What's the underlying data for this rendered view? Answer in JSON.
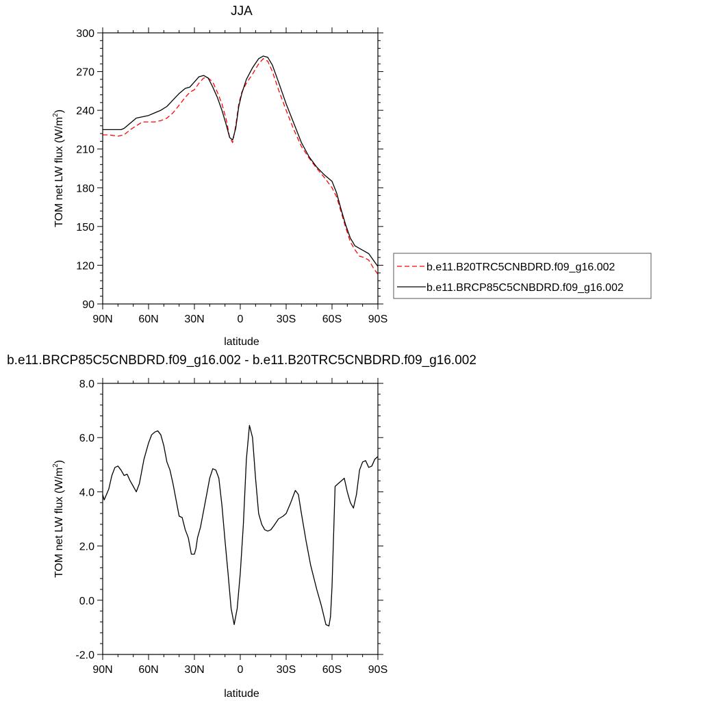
{
  "chart_data": [
    {
      "type": "line",
      "title": "JJA",
      "xlabel": "latitude",
      "ylabel_prefix": "TOM net LW flux (W/m",
      "ylabel_sup": "2",
      "ylabel_suffix": ")",
      "xlim": [
        90,
        -90
      ],
      "ylim": [
        90,
        300
      ],
      "xticks": [
        90,
        60,
        30,
        0,
        -30,
        -60,
        -90
      ],
      "xtick_labels": [
        "90N",
        "60N",
        "30N",
        "0",
        "30S",
        "60S",
        "90S"
      ],
      "yticks": [
        90,
        120,
        150,
        180,
        210,
        240,
        270,
        300
      ],
      "ytick_labels": [
        "90",
        "120",
        "150",
        "180",
        "210",
        "240",
        "270",
        "300"
      ],
      "legend_position": "right-outside",
      "series": [
        {
          "name": "b.e11.B20TRC5CNBDRD.f09_g16.002",
          "color": "#ff0000",
          "dash": "dashed",
          "x": [
            90,
            86,
            80,
            76,
            72,
            68,
            64,
            60,
            56,
            52,
            48,
            44,
            40,
            36,
            33,
            30,
            27,
            24,
            21,
            18,
            15,
            12,
            9,
            7,
            5,
            3,
            1,
            -1,
            -4,
            -8,
            -12,
            -15,
            -18,
            -21,
            -25,
            -30,
            -35,
            -40,
            -45,
            -50,
            -55,
            -60,
            -63,
            -66,
            -69,
            -72,
            -75,
            -78,
            -81,
            -84,
            -87,
            -90
          ],
          "y": [
            221,
            221,
            220,
            221,
            225,
            228,
            231,
            231,
            231,
            232,
            234,
            238,
            244,
            250,
            254,
            256,
            261,
            265,
            265,
            262,
            254,
            245,
            232,
            219,
            215,
            228,
            245,
            254,
            261,
            268,
            276,
            280,
            278,
            270,
            256,
            240,
            225,
            212,
            203,
            195,
            188,
            180,
            173,
            161,
            149,
            138,
            132,
            127,
            126,
            124,
            118,
            113
          ]
        },
        {
          "name": "b.e11.BRCP85C5CNBDRD.f09_g16.002",
          "color": "#000000",
          "dash": "solid",
          "x": [
            90,
            86,
            82,
            80,
            78,
            76,
            72,
            68,
            64,
            60,
            56,
            52,
            48,
            44,
            40,
            36,
            33,
            30,
            27,
            24,
            21,
            18,
            15,
            12,
            9,
            7,
            5,
            3,
            1,
            -1,
            -4,
            -8,
            -12,
            -15,
            -18,
            -21,
            -25,
            -30,
            -35,
            -40,
            -45,
            -50,
            -55,
            -60,
            -63,
            -66,
            -69,
            -72,
            -75,
            -78,
            -81,
            -84,
            -87,
            -90
          ],
          "y": [
            225,
            225,
            225,
            225,
            225,
            226,
            230,
            234,
            235,
            236,
            238,
            240,
            243,
            248,
            253,
            257,
            258,
            262,
            266,
            267,
            265,
            258,
            250,
            240,
            228,
            219,
            217,
            226,
            243,
            253,
            264,
            273,
            280,
            282,
            281,
            275,
            262,
            245,
            230,
            215,
            204,
            196,
            190,
            185,
            176,
            163,
            151,
            141,
            135,
            133,
            131,
            129,
            124,
            119
          ]
        }
      ]
    },
    {
      "type": "line",
      "title": "b.e11.BRCP85C5CNBDRD.f09_g16.002 - b.e11.B20TRC5CNBDRD.f09_g16.002",
      "xlabel": "latitude",
      "ylabel_prefix": "TOM net LW flux (W/m",
      "ylabel_sup": "2",
      "ylabel_suffix": ")",
      "xlim": [
        90,
        -90
      ],
      "ylim": [
        -2,
        8
      ],
      "xticks": [
        90,
        60,
        30,
        0,
        -30,
        -60,
        -90
      ],
      "xtick_labels": [
        "90N",
        "60N",
        "30N",
        "0",
        "30S",
        "60S",
        "90S"
      ],
      "yticks": [
        -2,
        0,
        2,
        4,
        6,
        8
      ],
      "ytick_labels": [
        "-2.0",
        "0.0",
        "2.0",
        "4.0",
        "6.0",
        "8.0"
      ],
      "series": [
        {
          "color": "#000000",
          "dash": "solid",
          "x": [
            90,
            89,
            86,
            84,
            82,
            80,
            78,
            76,
            74,
            72,
            70,
            68,
            66,
            63,
            60,
            58,
            56,
            54,
            52,
            50,
            48,
            46,
            44,
            42,
            40,
            38,
            36,
            34,
            32,
            30,
            29,
            28,
            26,
            24,
            22,
            20,
            18,
            16,
            14,
            12,
            10,
            8,
            6,
            4,
            2,
            0,
            -2,
            -4,
            -6,
            -8,
            -10,
            -12,
            -14,
            -16,
            -18,
            -20,
            -22,
            -25,
            -28,
            -30,
            -33,
            -36,
            -38,
            -40,
            -43,
            -46,
            -50,
            -53,
            -56,
            -58,
            -59,
            -60,
            -62,
            -64,
            -66,
            -68,
            -70,
            -72,
            -74,
            -76,
            -78,
            -80,
            -82,
            -84,
            -86,
            -88,
            -90
          ],
          "y": [
            3.9,
            3.7,
            4.1,
            4.6,
            4.9,
            4.95,
            4.8,
            4.6,
            4.65,
            4.4,
            4.2,
            4.0,
            4.3,
            5.2,
            5.8,
            6.1,
            6.2,
            6.25,
            6.1,
            5.7,
            5.1,
            4.8,
            4.3,
            3.7,
            3.1,
            3.05,
            2.6,
            2.3,
            1.7,
            1.7,
            1.9,
            2.3,
            2.7,
            3.3,
            3.9,
            4.5,
            4.85,
            4.8,
            4.5,
            3.5,
            2.2,
            1.0,
            -0.3,
            -0.9,
            -0.3,
            1.0,
            2.8,
            5.2,
            6.45,
            6.0,
            4.5,
            3.2,
            2.8,
            2.6,
            2.55,
            2.6,
            2.75,
            3.0,
            3.1,
            3.2,
            3.6,
            4.05,
            3.9,
            3.2,
            2.2,
            1.3,
            0.4,
            -0.2,
            -0.9,
            -0.95,
            -0.6,
            0.5,
            4.2,
            4.3,
            4.4,
            4.5,
            4.0,
            3.6,
            3.4,
            3.9,
            4.8,
            5.1,
            5.15,
            4.9,
            4.95,
            5.2,
            5.3
          ]
        }
      ]
    }
  ]
}
